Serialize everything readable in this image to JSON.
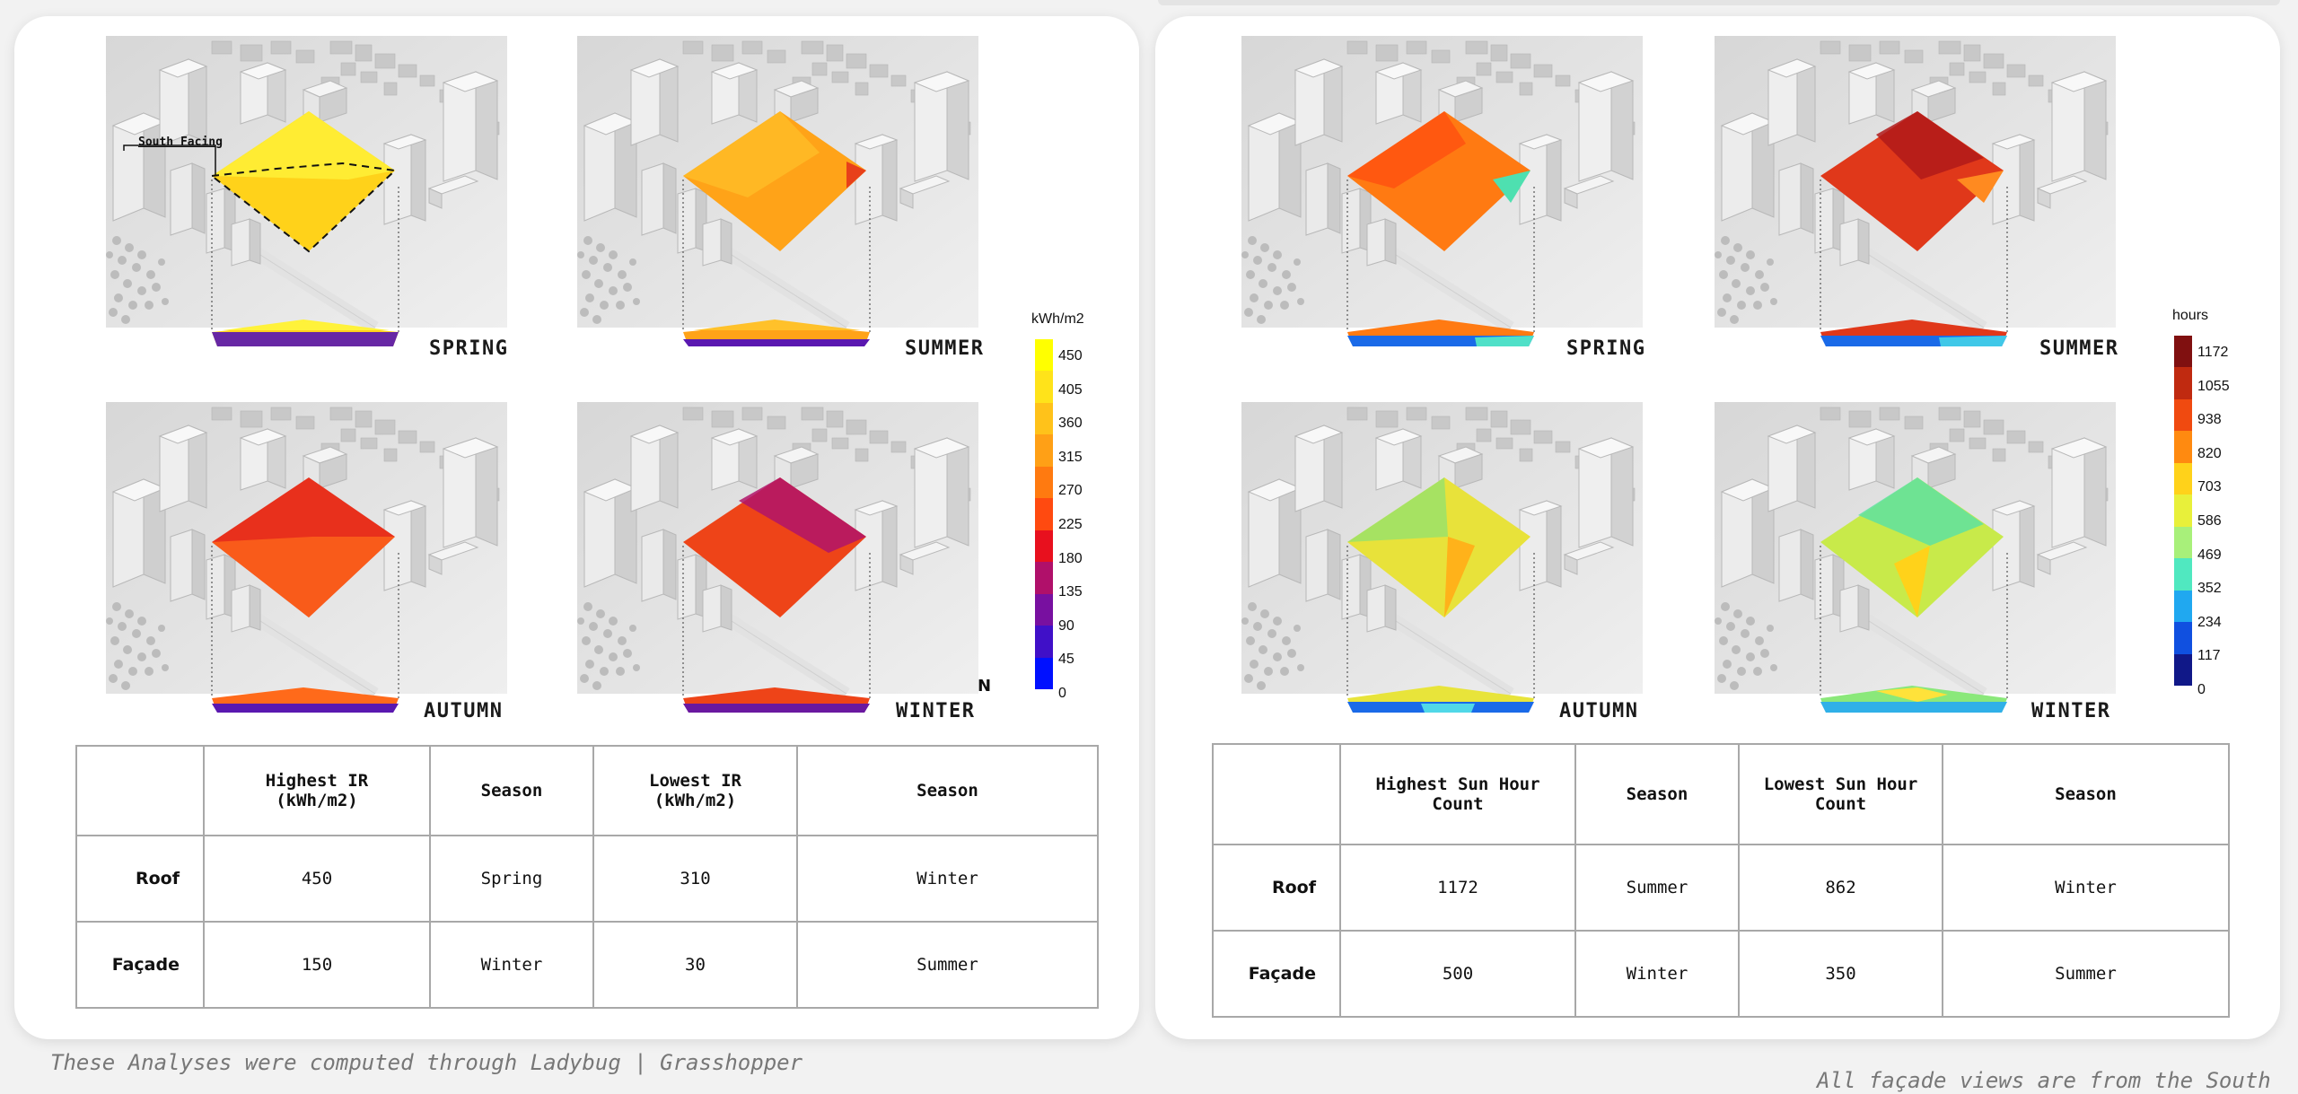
{
  "left": {
    "south_label": "South Facing",
    "north_symbol": "N",
    "seasons": [
      "SPRING",
      "SUMMER",
      "AUTUMN",
      "WINTER"
    ],
    "colors": {
      "spring_roof": "#ffd21a",
      "spring_roof_hi": "#fff23a",
      "summer_roof": "#ffa318",
      "summer_roof_hi": "#ffc12a",
      "autumn_roof": "#e8301c",
      "autumn_roof_hi": "#ff6a1a",
      "winter_roof": "#ee4418",
      "winter_roof_hi": "#b0146a",
      "facade_base": "#5a18b0"
    },
    "legend": {
      "unit": "kWh/m2",
      "ticks": [
        "450",
        "405",
        "360",
        "315",
        "270",
        "225",
        "180",
        "135",
        "90",
        "45",
        "0"
      ],
      "colors": [
        "#ffff00",
        "#ffe31a",
        "#ffc21a",
        "#ffa016",
        "#ff7a10",
        "#ff4a10",
        "#e8101e",
        "#b0106a",
        "#7810a0",
        "#4010c8",
        "#0010ff"
      ]
    },
    "table": {
      "headers": [
        "",
        "Highest IR\n(kWh/m2)",
        "Season",
        "Lowest IR\n(kWh/m2)",
        "Season"
      ],
      "rows": [
        {
          "label": "Roof",
          "high": "450",
          "high_season": "Spring",
          "low": "310",
          "low_season": "Winter"
        },
        {
          "label": "Façade",
          "high": "150",
          "high_season": "Winter",
          "low": "30",
          "low_season": "Summer"
        }
      ]
    }
  },
  "right": {
    "seasons": [
      "SPRING",
      "SUMMER",
      "AUTUMN",
      "WINTER"
    ],
    "colors": {
      "spring_roof": "#ff7a12",
      "spring_roof_hi": "#ff4a10",
      "summer_roof": "#e0381a",
      "summer_roof_hi": "#b01a1a",
      "autumn_roof": "#e8e23a",
      "autumn_roof_hi": "#9ae26a",
      "winter_roof": "#c8ea4a",
      "winter_roof_hi": "#5ee2a0",
      "facade_base": "#1a6ae8"
    },
    "legend": {
      "unit": "hours",
      "ticks": [
        "1172",
        "1055",
        "938",
        "820",
        "703",
        "586",
        "469",
        "352",
        "234",
        "117",
        "0"
      ],
      "colors": [
        "#801010",
        "#c02a10",
        "#f04a10",
        "#ff8a10",
        "#ffd21a",
        "#e8f03a",
        "#a8f07a",
        "#50e8c0",
        "#20a8f0",
        "#1050e0",
        "#101888"
      ]
    },
    "table": {
      "headers": [
        "",
        "Highest Sun Hour\nCount",
        "Season",
        "Lowest Sun Hour\nCount",
        "Season"
      ],
      "rows": [
        {
          "label": "Roof",
          "high": "1172",
          "high_season": "Summer",
          "low": "862",
          "low_season": "Winter"
        },
        {
          "label": "Façade",
          "high": "500",
          "high_season": "Winter",
          "low": "350",
          "low_season": "Summer"
        }
      ]
    }
  },
  "footnotes": {
    "left": "These Analyses were computed through Ladybug | Grasshopper",
    "right": "All façade views are from the South"
  }
}
